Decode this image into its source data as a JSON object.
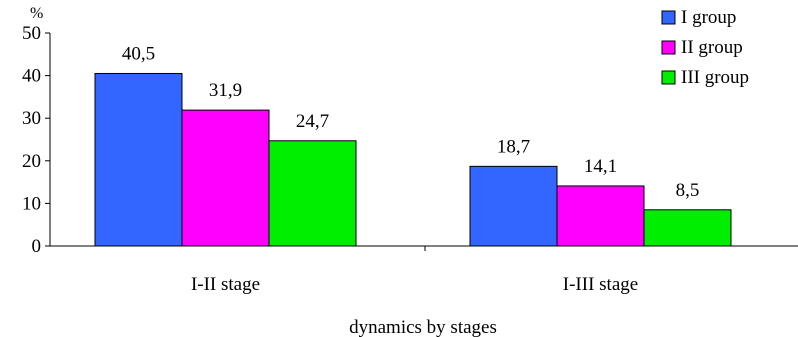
{
  "chart_data": {
    "type": "bar",
    "title": "",
    "xlabel": "dynamics by stages",
    "ylabel": "%",
    "ylim": [
      0,
      50
    ],
    "yticks": [
      0,
      10,
      20,
      30,
      40,
      50
    ],
    "categories": [
      "I-II stage",
      "I-III stage"
    ],
    "series": [
      {
        "name": "I group",
        "values": [
          40.5,
          18.7
        ],
        "labels": [
          "40,5",
          "18,7"
        ],
        "color": "#3366ff"
      },
      {
        "name": "II group",
        "values": [
          31.9,
          14.1
        ],
        "labels": [
          "31,9",
          "14,1"
        ],
        "color": "#ff00ff"
      },
      {
        "name": "III group",
        "values": [
          24.7,
          8.5
        ],
        "labels": [
          "24,7",
          "8,5"
        ],
        "color": "#00ee00"
      }
    ],
    "legend_position": "top-right",
    "grid": false
  }
}
